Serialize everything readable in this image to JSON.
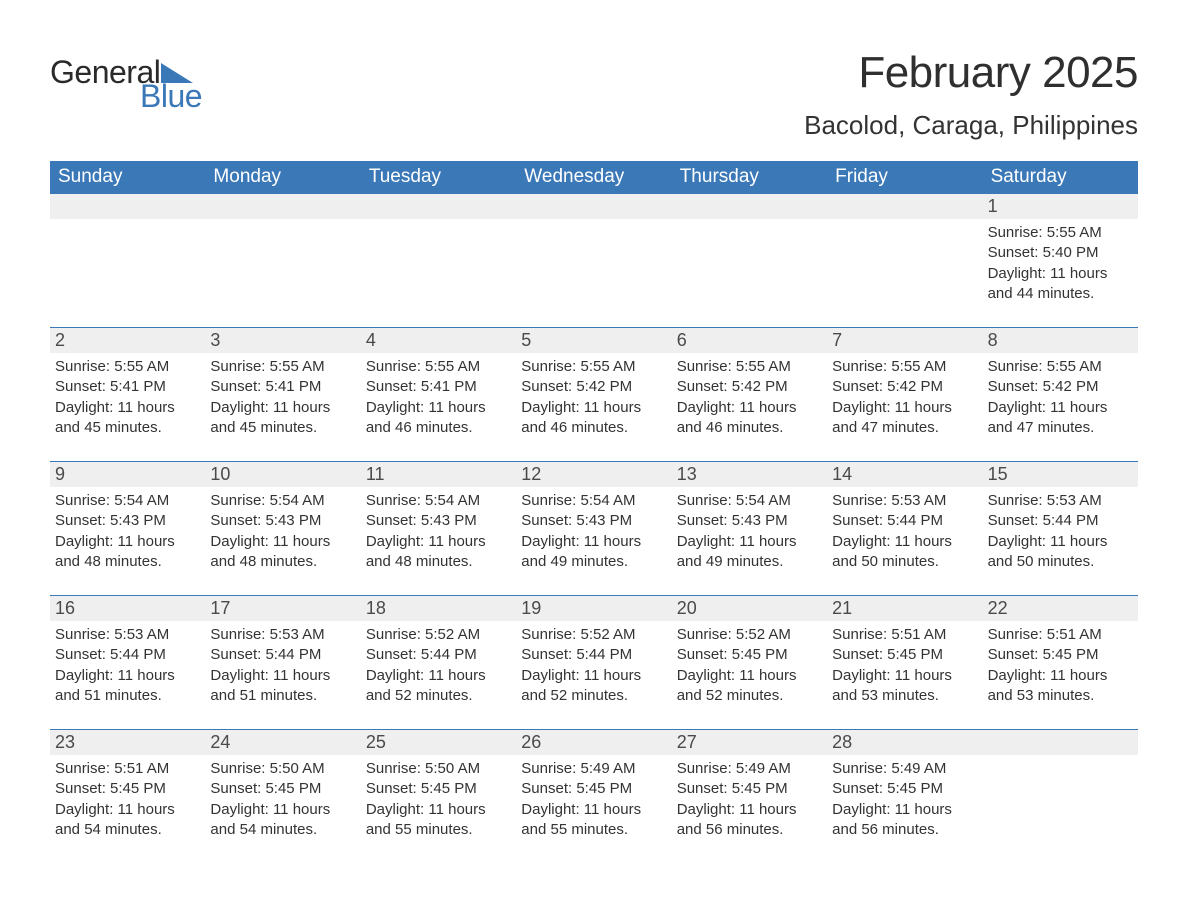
{
  "brand": {
    "part1": "General",
    "part2": "Blue",
    "accent_color": "#3a78b8"
  },
  "title": {
    "month": "February 2025",
    "location": "Bacolod, Caraga, Philippines"
  },
  "colors": {
    "header_bg": "#3a78b8",
    "header_text": "#ffffff",
    "daynum_bg": "#efefef",
    "text": "#333333",
    "rule": "#3a78b8",
    "page_bg": "#ffffff"
  },
  "typography": {
    "title_fontsize": 44,
    "location_fontsize": 26,
    "dow_fontsize": 19,
    "daynum_fontsize": 18,
    "body_fontsize": 15
  },
  "label_templates": {
    "sunrise": "Sunrise: ",
    "sunset": "Sunset: ",
    "daylight_prefix": "Daylight: ",
    "daylight_suffix": " minutes."
  },
  "days_of_week": [
    "Sunday",
    "Monday",
    "Tuesday",
    "Wednesday",
    "Thursday",
    "Friday",
    "Saturday"
  ],
  "weeks": [
    [
      null,
      null,
      null,
      null,
      null,
      null,
      {
        "n": "1",
        "sunrise": "5:55 AM",
        "sunset": "5:40 PM",
        "daylight": "11 hours and 44"
      }
    ],
    [
      {
        "n": "2",
        "sunrise": "5:55 AM",
        "sunset": "5:41 PM",
        "daylight": "11 hours and 45"
      },
      {
        "n": "3",
        "sunrise": "5:55 AM",
        "sunset": "5:41 PM",
        "daylight": "11 hours and 45"
      },
      {
        "n": "4",
        "sunrise": "5:55 AM",
        "sunset": "5:41 PM",
        "daylight": "11 hours and 46"
      },
      {
        "n": "5",
        "sunrise": "5:55 AM",
        "sunset": "5:42 PM",
        "daylight": "11 hours and 46"
      },
      {
        "n": "6",
        "sunrise": "5:55 AM",
        "sunset": "5:42 PM",
        "daylight": "11 hours and 46"
      },
      {
        "n": "7",
        "sunrise": "5:55 AM",
        "sunset": "5:42 PM",
        "daylight": "11 hours and 47"
      },
      {
        "n": "8",
        "sunrise": "5:55 AM",
        "sunset": "5:42 PM",
        "daylight": "11 hours and 47"
      }
    ],
    [
      {
        "n": "9",
        "sunrise": "5:54 AM",
        "sunset": "5:43 PM",
        "daylight": "11 hours and 48"
      },
      {
        "n": "10",
        "sunrise": "5:54 AM",
        "sunset": "5:43 PM",
        "daylight": "11 hours and 48"
      },
      {
        "n": "11",
        "sunrise": "5:54 AM",
        "sunset": "5:43 PM",
        "daylight": "11 hours and 48"
      },
      {
        "n": "12",
        "sunrise": "5:54 AM",
        "sunset": "5:43 PM",
        "daylight": "11 hours and 49"
      },
      {
        "n": "13",
        "sunrise": "5:54 AM",
        "sunset": "5:43 PM",
        "daylight": "11 hours and 49"
      },
      {
        "n": "14",
        "sunrise": "5:53 AM",
        "sunset": "5:44 PM",
        "daylight": "11 hours and 50"
      },
      {
        "n": "15",
        "sunrise": "5:53 AM",
        "sunset": "5:44 PM",
        "daylight": "11 hours and 50"
      }
    ],
    [
      {
        "n": "16",
        "sunrise": "5:53 AM",
        "sunset": "5:44 PM",
        "daylight": "11 hours and 51"
      },
      {
        "n": "17",
        "sunrise": "5:53 AM",
        "sunset": "5:44 PM",
        "daylight": "11 hours and 51"
      },
      {
        "n": "18",
        "sunrise": "5:52 AM",
        "sunset": "5:44 PM",
        "daylight": "11 hours and 52"
      },
      {
        "n": "19",
        "sunrise": "5:52 AM",
        "sunset": "5:44 PM",
        "daylight": "11 hours and 52"
      },
      {
        "n": "20",
        "sunrise": "5:52 AM",
        "sunset": "5:45 PM",
        "daylight": "11 hours and 52"
      },
      {
        "n": "21",
        "sunrise": "5:51 AM",
        "sunset": "5:45 PM",
        "daylight": "11 hours and 53"
      },
      {
        "n": "22",
        "sunrise": "5:51 AM",
        "sunset": "5:45 PM",
        "daylight": "11 hours and 53"
      }
    ],
    [
      {
        "n": "23",
        "sunrise": "5:51 AM",
        "sunset": "5:45 PM",
        "daylight": "11 hours and 54"
      },
      {
        "n": "24",
        "sunrise": "5:50 AM",
        "sunset": "5:45 PM",
        "daylight": "11 hours and 54"
      },
      {
        "n": "25",
        "sunrise": "5:50 AM",
        "sunset": "5:45 PM",
        "daylight": "11 hours and 55"
      },
      {
        "n": "26",
        "sunrise": "5:49 AM",
        "sunset": "5:45 PM",
        "daylight": "11 hours and 55"
      },
      {
        "n": "27",
        "sunrise": "5:49 AM",
        "sunset": "5:45 PM",
        "daylight": "11 hours and 56"
      },
      {
        "n": "28",
        "sunrise": "5:49 AM",
        "sunset": "5:45 PM",
        "daylight": "11 hours and 56"
      },
      null
    ]
  ]
}
